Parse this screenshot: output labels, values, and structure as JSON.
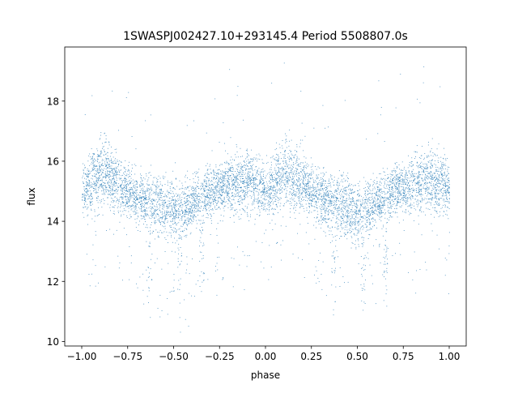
{
  "chart_data": {
    "type": "scatter",
    "title": "1SWASPJ002427.10+293145.4 Period 5508807.0s",
    "xlabel": "phase",
    "ylabel": "flux",
    "xlim": [
      -1.0925,
      1.0925
    ],
    "ylim": [
      9.85,
      19.8
    ],
    "xticks": [
      -1.0,
      -0.75,
      -0.5,
      -0.25,
      0.0,
      0.25,
      0.5,
      0.75,
      1.0
    ],
    "xtick_labels": [
      "−1.00",
      "−0.75",
      "−0.50",
      "−0.25",
      "0.00",
      "0.25",
      "0.50",
      "0.75",
      "1.00"
    ],
    "yticks": [
      10,
      12,
      14,
      16,
      18
    ],
    "ytick_labels": [
      "10",
      "12",
      "14",
      "16",
      "18"
    ],
    "grid": false,
    "legend": "none",
    "color": "#1f77b4",
    "series": [
      {
        "phase_mean_profile": {
          "x": [
            0.0,
            0.05,
            0.1,
            0.15,
            0.2,
            0.25,
            0.3,
            0.35,
            0.4,
            0.45,
            0.5,
            0.55,
            0.6,
            0.65,
            0.7,
            0.75,
            0.8,
            0.85,
            0.9,
            0.95,
            1.0
          ],
          "y": [
            15.0,
            15.3,
            15.6,
            15.5,
            15.2,
            15.0,
            14.8,
            14.7,
            14.6,
            14.5,
            14.3,
            14.4,
            14.6,
            14.9,
            15.0,
            15.1,
            15.2,
            15.3,
            15.4,
            15.3,
            15.0
          ],
          "scatter_half_width": [
            0.9,
            1.1,
            1.2,
            1.1,
            1.0,
            0.9,
            0.9,
            0.9,
            1.1,
            1.1,
            1.0,
            1.0,
            0.9,
            0.9,
            0.9,
            0.9,
            1.0,
            1.1,
            1.1,
            1.0,
            0.9
          ]
        },
        "dip_phases": [
          0.37,
          0.53,
          0.65
        ],
        "point_count": 7000
      }
    ]
  }
}
